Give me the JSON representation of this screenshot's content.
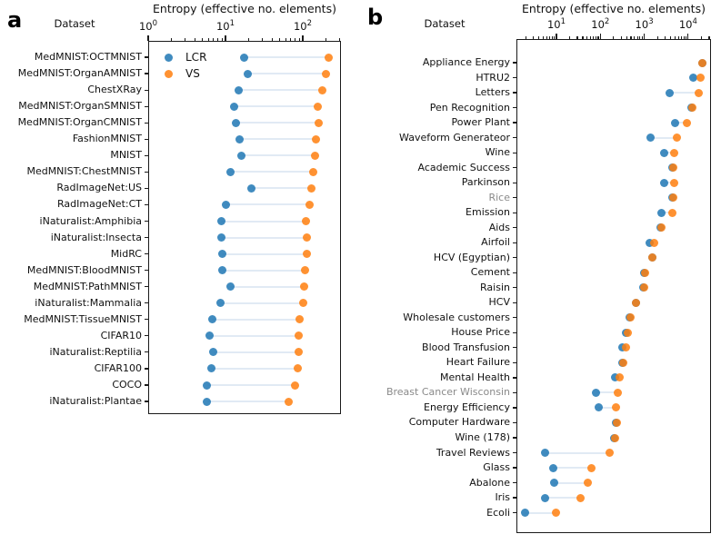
{
  "chart_data": [
    {
      "type": "scatter",
      "subtype": "dumbbell-dot-plot",
      "panel_label": "a",
      "xlabel": "Entropy (effective no. elements)",
      "ylabel_header": "Dataset",
      "x_scale": "log",
      "x_axis": {
        "log_min": 0,
        "log_max": 2.494,
        "xlim_approx": [
          1,
          312
        ],
        "tick_exponents": [
          0,
          1,
          2
        ],
        "ticks_position": "top",
        "grid": false
      },
      "legend": {
        "position": "upper-left-inside",
        "entries": [
          {
            "name": "LCR",
            "color": "#1f77b4"
          },
          {
            "name": "VS",
            "color": "#ff7f0e"
          }
        ]
      },
      "categories": [
        "MedMNIST:OCTMNIST",
        "MedMNIST:OrganAMNIST",
        "ChestXRay",
        "MedMNIST:OrganSMNIST",
        "MedMNIST:OrganCMNIST",
        "FashionMNIST",
        "MNIST",
        "MedMNIST:ChestMNIST",
        "RadImageNet:US",
        "RadImageNet:CT",
        "iNaturalist:Amphibia",
        "iNaturalist:Insecta",
        "MidRC",
        "MedMNIST:BloodMNIST",
        "MedMNIST:PathMNIST",
        "iNaturalist:Mammalia",
        "MedMNIST:TissueMNIST",
        "CIFAR10",
        "iNaturalist:Reptilia",
        "CIFAR100",
        "COCO",
        "iNaturalist:Plantae"
      ],
      "muted_categories": [],
      "series": [
        {
          "name": "LCR",
          "color": "#1f77b4",
          "values": [
            17.2,
            19.2,
            15.0,
            12.8,
            13.8,
            15.4,
            16.2,
            11.5,
            21.9,
            10.0,
            8.8,
            8.8,
            9.0,
            9.2,
            11.5,
            8.5,
            6.7,
            6.3,
            7.0,
            6.5,
            5.8,
            5.8
          ]
        },
        {
          "name": "VS",
          "color": "#ff7f0e",
          "values": [
            219,
            197,
            181,
            155,
            159,
            150,
            146,
            135,
            131,
            121,
            111,
            114,
            114,
            108,
            103,
            100,
            90,
            88,
            88,
            85,
            79,
            65
          ]
        }
      ],
      "connector_color": "#e1eaf4"
    },
    {
      "type": "scatter",
      "subtype": "dumbbell-dot-plot",
      "panel_label": "b",
      "xlabel": "Entropy (effective no. elements)",
      "ylabel_header": "Dataset",
      "x_scale": "log",
      "x_axis": {
        "log_min": 0.089,
        "log_max": 4.52,
        "xlim_approx": [
          1.23,
          33000
        ],
        "tick_exponents": [
          1,
          2,
          3,
          4
        ],
        "ticks_position": "top",
        "grid": false
      },
      "legend": null,
      "categories": [
        "Appliance Energy",
        "HTRU2",
        "Letters",
        "Pen Recognition",
        "Power Plant",
        "Waveform Generateor",
        "Wine",
        "Academic Success",
        "Parkinson",
        "Rice",
        "Emission",
        "Aids",
        "Airfoil",
        "HCV (Egyptian)",
        "Cement",
        "Raisin",
        "HCV",
        "Wholesale customers",
        "House Price",
        "Blood Transfusion",
        "Heart Failure",
        "Mental Health",
        "Breast Cancer Wisconsin",
        "Energy Efficiency",
        "Computer Hardware",
        "Wine (178)",
        "Travel Reviews",
        "Glass",
        "Abalone",
        "Iris",
        "Ecoli"
      ],
      "muted_categories": [
        "Rice",
        "Breast Cancer Wisconsin"
      ],
      "series": [
        {
          "name": "LCR",
          "color": "#1f77b4",
          "values": [
            21000,
            13000,
            3700,
            12000,
            5000,
            1400,
            2900,
            4300,
            2900,
            4400,
            2500,
            2400,
            1350,
            1500,
            990,
            950,
            640,
            470,
            375,
            310,
            315,
            212,
            81,
            90,
            230,
            205,
            5.6,
            8.3,
            8.7,
            5.6,
            1.9
          ]
        },
        {
          "name": "VS",
          "color": "#ff7f0e",
          "values": [
            21000,
            19500,
            17500,
            12300,
            9500,
            5600,
            4900,
            4600,
            4900,
            4500,
            4300,
            2450,
            1650,
            1550,
            1050,
            980,
            660,
            480,
            430,
            375,
            325,
            270,
            255,
            230,
            235,
            212,
            165,
            62,
            53,
            35,
            10
          ]
        }
      ],
      "connector_color": "#e1eaf4"
    }
  ]
}
